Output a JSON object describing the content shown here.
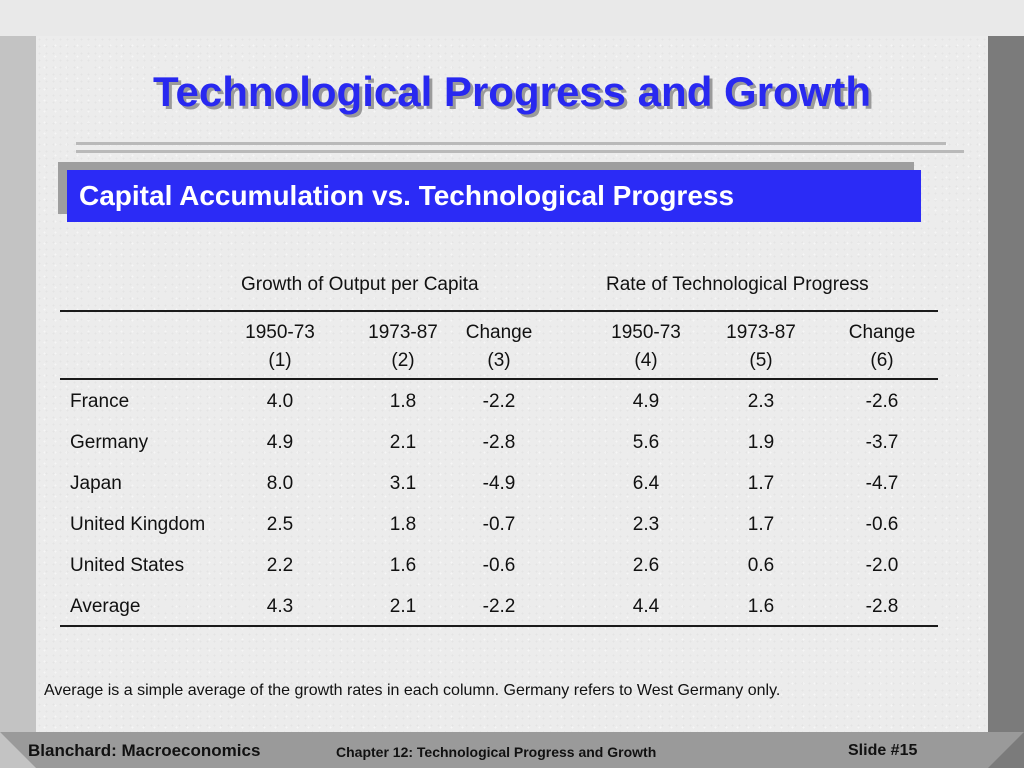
{
  "title": "Technological Progress and Growth",
  "subtitle": "Capital Accumulation vs. Technological Progress",
  "table": {
    "group_headers": [
      "Growth of Output per Capita",
      "Rate of Technological Progress"
    ],
    "columns": [
      {
        "period": "1950-73",
        "index": "(1)"
      },
      {
        "period": "1973-87",
        "index": "(2)"
      },
      {
        "period": "Change",
        "index": "(3)"
      },
      {
        "period": "1950-73",
        "index": "(4)"
      },
      {
        "period": "1973-87",
        "index": "(5)"
      },
      {
        "period": "Change",
        "index": "(6)"
      }
    ],
    "rows": [
      {
        "country": "France",
        "values": [
          "4.0",
          "1.8",
          "-2.2",
          "4.9",
          "2.3",
          "-2.6"
        ]
      },
      {
        "country": "Germany",
        "values": [
          "4.9",
          "2.1",
          "-2.8",
          "5.6",
          "1.9",
          "-3.7"
        ]
      },
      {
        "country": "Japan",
        "values": [
          "8.0",
          "3.1",
          "-4.9",
          "6.4",
          "1.7",
          "-4.7"
        ]
      },
      {
        "country": "United Kingdom",
        "values": [
          "2.5",
          "1.8",
          "-0.7",
          "2.3",
          "1.7",
          "-0.6"
        ]
      },
      {
        "country": "United States",
        "values": [
          "2.2",
          "1.6",
          "-0.6",
          "2.6",
          "0.6",
          "-2.0"
        ]
      },
      {
        "country": "Average",
        "values": [
          "4.3",
          "2.1",
          "-2.2",
          "4.4",
          "1.6",
          "-2.8"
        ]
      }
    ]
  },
  "note": "Average is a simple average of the growth rates in each column.  Germany refers to West Germany only.",
  "footer": {
    "left": "Blanchard: Macroeconomics",
    "center": "Chapter 12: Technological Progress and Growth",
    "right": "Slide #15"
  },
  "colors": {
    "title": "#2828f0",
    "subtitle_bg": "#2b2bf6",
    "subtitle_text": "#ffffff"
  }
}
